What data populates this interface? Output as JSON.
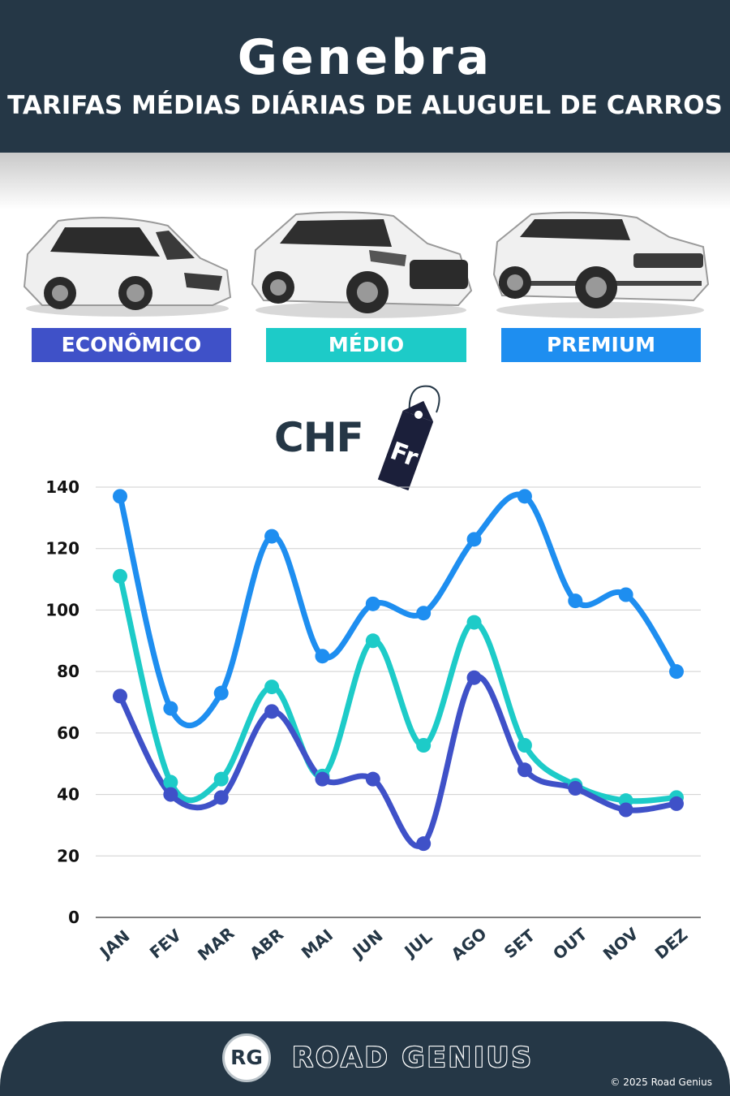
{
  "header": {
    "city": "Genebra",
    "subtitle": "TARIFAS MÉDIAS DIÁRIAS DE ALUGUEL DE CARROS"
  },
  "categories": [
    {
      "label": "ECONÔMICO",
      "color": "#3f51c8"
    },
    {
      "label": "MÉDIO",
      "color": "#1dcbc8"
    },
    {
      "label": "PREMIUM",
      "color": "#1e8ef0"
    }
  ],
  "currency": {
    "code": "CHF",
    "tag_text": "Fr"
  },
  "chart_data": {
    "type": "line",
    "categories": [
      "JAN",
      "FEV",
      "MAR",
      "ABR",
      "MAI",
      "JUN",
      "JUL",
      "AGO",
      "SET",
      "OUT",
      "NOV",
      "DEZ"
    ],
    "ylim": [
      0,
      140
    ],
    "yticks": [
      0,
      20,
      40,
      60,
      80,
      100,
      120,
      140
    ],
    "grid": true,
    "series": [
      {
        "name": "PREMIUM",
        "color": "#1e8ef0",
        "values": [
          137,
          68,
          73,
          124,
          85,
          102,
          99,
          123,
          137,
          103,
          105,
          80
        ]
      },
      {
        "name": "MÉDIO",
        "color": "#1dcbc8",
        "values": [
          111,
          44,
          45,
          75,
          46,
          90,
          56,
          96,
          56,
          43,
          38,
          39
        ]
      },
      {
        "name": "ECONÔMICO",
        "color": "#3f51c8",
        "values": [
          72,
          40,
          39,
          67,
          45,
          45,
          24,
          78,
          48,
          42,
          35,
          37
        ]
      }
    ]
  },
  "footer": {
    "logo_text": "RG",
    "brand": "ROAD GENIUS",
    "copyright": "© 2025 Road Genius"
  }
}
